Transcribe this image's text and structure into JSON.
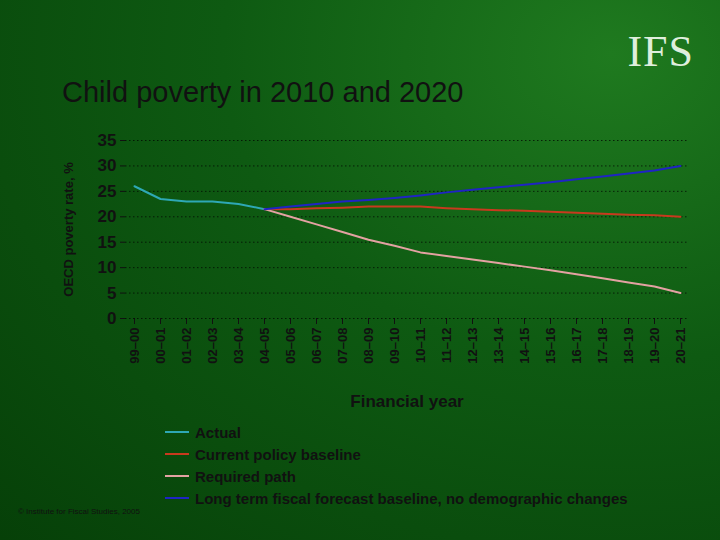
{
  "chart_data": {
    "type": "line",
    "title": "Child poverty in 2010 and 2020",
    "x_label": "Financial year",
    "y_label": "OECD poverty rate, %",
    "categories": [
      "99–00",
      "00–01",
      "01–02",
      "02–03",
      "03–04",
      "04–05",
      "05–06",
      "06–07",
      "07–08",
      "08–09",
      "09–10",
      "10–11",
      "11–12",
      "12–13",
      "13–14",
      "14–15",
      "15–16",
      "16–17",
      "17–18",
      "18–19",
      "19–20",
      "20–21"
    ],
    "series": [
      {
        "name": "Actual",
        "color": "#2ea8b5",
        "values": [
          26,
          23.5,
          23,
          23,
          22.5,
          21.5,
          null,
          null,
          null,
          null,
          null,
          null,
          null,
          null,
          null,
          null,
          null,
          null,
          null,
          null,
          null,
          null
        ]
      },
      {
        "name": "Current policy baseline",
        "color": "#c83a1e",
        "values": [
          null,
          null,
          null,
          null,
          null,
          21.5,
          21.5,
          21.7,
          21.8,
          22,
          22,
          22,
          21.7,
          21.5,
          21.3,
          21.2,
          21,
          20.8,
          20.6,
          20.4,
          20.3,
          20
        ]
      },
      {
        "name": "Required path",
        "color": "#e3a2a2",
        "values": [
          null,
          null,
          null,
          null,
          null,
          21.5,
          20,
          18.5,
          17,
          15.5,
          14.3,
          13,
          12.3,
          11.6,
          10.9,
          10.2,
          9.5,
          8.7,
          7.9,
          7.1,
          6.3,
          5
        ]
      },
      {
        "name": "Long term fiscal forecast baseline, no demographic changes",
        "color": "#1f24c4",
        "values": [
          null,
          null,
          null,
          null,
          null,
          21.5,
          22,
          22.5,
          23,
          23.3,
          23.7,
          24.2,
          24.8,
          25.3,
          25.8,
          26.3,
          26.8,
          27.4,
          27.9,
          28.5,
          29.1,
          30
        ]
      }
    ],
    "ylim": [
      0,
      35
    ],
    "yticks": [
      0,
      5,
      10,
      15,
      20,
      25,
      30,
      35
    ],
    "grid": true,
    "legend": "bottom",
    "logo": "IFS",
    "caption": "© Institute for Fiscal Studies, 2005"
  }
}
